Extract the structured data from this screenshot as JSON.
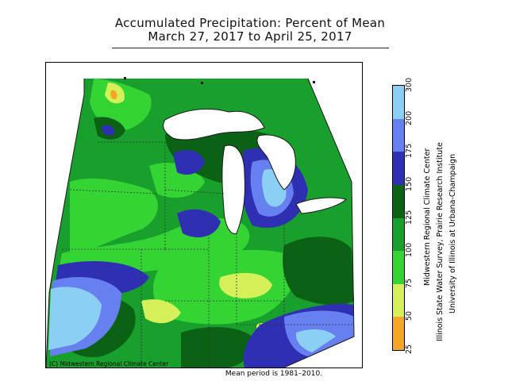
{
  "title": {
    "line1": "Accumulated Precipitation: Percent of Mean",
    "line2": "March 27, 2017 to April 25, 2017"
  },
  "map": {
    "copyright": "(C) Midwestern Regional Climate Center",
    "footnote": "Mean period is 1981–2010.",
    "colors": {
      "c25_50": "#f5a623",
      "c50_75": "#d6f05a",
      "c75_100": "#35d435",
      "c100_125": "#19a02c",
      "c125_150": "#0b6114",
      "c150_175": "#2f2fb4",
      "c175_200": "#6680f0",
      "c200_300": "#8ccff5",
      "lake": "#ffffff",
      "border": "#1a1a1a"
    }
  },
  "legend": {
    "ticks": [
      "25",
      "50",
      "75",
      "100",
      "125",
      "150",
      "175",
      "200",
      "300"
    ],
    "bins": [
      {
        "range": "25-50",
        "color": "#f5a623"
      },
      {
        "range": "50-75",
        "color": "#d6f05a"
      },
      {
        "range": "75-100",
        "color": "#35d435"
      },
      {
        "range": "100-125",
        "color": "#19a02c"
      },
      {
        "range": "125-150",
        "color": "#0b6114"
      },
      {
        "range": "150-175",
        "color": "#2f2fb4"
      },
      {
        "range": "175-200",
        "color": "#6680f0"
      },
      {
        "range": "200-300",
        "color": "#8ccff5"
      }
    ]
  },
  "credits": {
    "line1": "Midwestern Regional Climate Center",
    "line2": "Illinois State Water Survey, Prairie Research Institute",
    "line3": "University of Illinois at Urbana-Champaign"
  }
}
